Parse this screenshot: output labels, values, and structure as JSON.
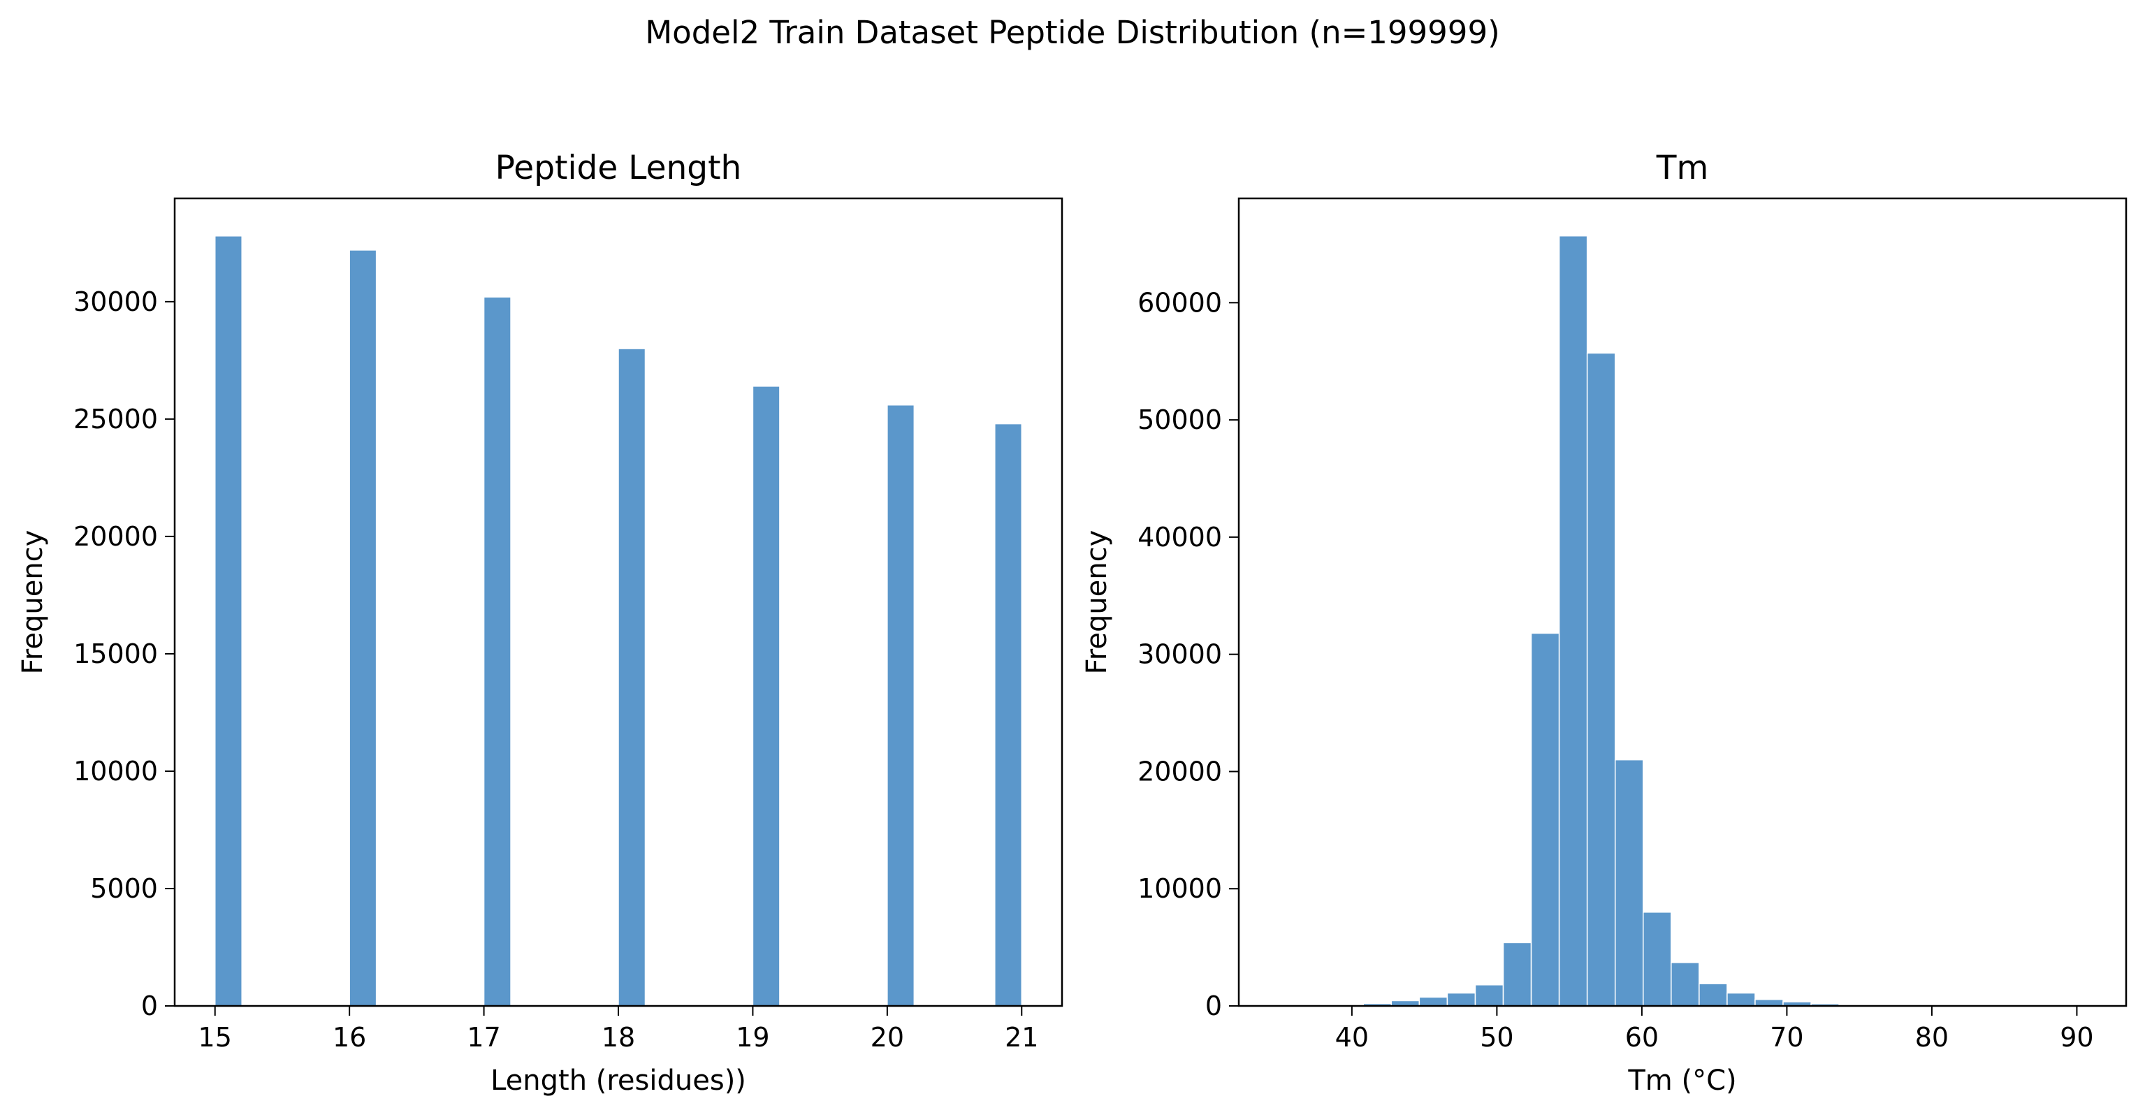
{
  "figure": {
    "suptitle": "Model2 Train Dataset Peptide Distribution (n=199999)",
    "bar_color": "#5b97cb",
    "bar_edge_color": "#ffffff"
  },
  "chart_data": [
    {
      "type": "bar",
      "title": "Peptide Length",
      "xlabel": "Length (residues))",
      "ylabel": "Frequency",
      "xlim": [
        14.7,
        21.3
      ],
      "ylim": [
        0,
        34400
      ],
      "xticks": [
        15,
        16,
        17,
        18,
        19,
        20,
        21
      ],
      "yticks": [
        0,
        5000,
        10000,
        15000,
        20000,
        25000,
        30000
      ],
      "bin_width": 0.2,
      "bars": [
        {
          "x0": 15.0,
          "x1": 15.2,
          "value": 32800
        },
        {
          "x0": 16.0,
          "x1": 16.2,
          "value": 32200
        },
        {
          "x0": 17.0,
          "x1": 17.2,
          "value": 30200
        },
        {
          "x0": 18.0,
          "x1": 18.2,
          "value": 28000
        },
        {
          "x0": 19.0,
          "x1": 19.2,
          "value": 26400
        },
        {
          "x0": 20.0,
          "x1": 20.2,
          "value": 25600
        },
        {
          "x0": 20.8,
          "x1": 21.0,
          "value": 24800
        }
      ],
      "grid": false
    },
    {
      "type": "bar",
      "title": "Tm",
      "xlabel": "Tm (°C)",
      "ylabel": "Frequency",
      "xlim": [
        32.2,
        93.4
      ],
      "ylim": [
        0,
        68900
      ],
      "xticks": [
        40,
        50,
        60,
        70,
        80,
        90
      ],
      "yticks": [
        0,
        10000,
        20000,
        30000,
        40000,
        50000,
        60000
      ],
      "bin_width": 1.93,
      "bars": [
        {
          "x0": 35.0,
          "x1": 36.93,
          "value": 0
        },
        {
          "x0": 36.93,
          "x1": 38.86,
          "value": 50
        },
        {
          "x0": 38.86,
          "x1": 40.79,
          "value": 80
        },
        {
          "x0": 40.79,
          "x1": 42.72,
          "value": 200
        },
        {
          "x0": 42.72,
          "x1": 44.65,
          "value": 450
        },
        {
          "x0": 44.65,
          "x1": 46.58,
          "value": 750
        },
        {
          "x0": 46.58,
          "x1": 48.51,
          "value": 1100
        },
        {
          "x0": 48.51,
          "x1": 50.44,
          "value": 1800
        },
        {
          "x0": 50.44,
          "x1": 52.37,
          "value": 5400
        },
        {
          "x0": 52.37,
          "x1": 54.3,
          "value": 31800
        },
        {
          "x0": 54.3,
          "x1": 56.23,
          "value": 65700
        },
        {
          "x0": 56.23,
          "x1": 58.16,
          "value": 55700
        },
        {
          "x0": 58.16,
          "x1": 60.09,
          "value": 21000
        },
        {
          "x0": 60.09,
          "x1": 62.02,
          "value": 8000
        },
        {
          "x0": 62.02,
          "x1": 63.95,
          "value": 3700
        },
        {
          "x0": 63.95,
          "x1": 65.88,
          "value": 1900
        },
        {
          "x0": 65.88,
          "x1": 67.81,
          "value": 1100
        },
        {
          "x0": 67.81,
          "x1": 69.74,
          "value": 550
        },
        {
          "x0": 69.74,
          "x1": 71.67,
          "value": 350
        },
        {
          "x0": 71.67,
          "x1": 73.6,
          "value": 180
        },
        {
          "x0": 73.6,
          "x1": 75.53,
          "value": 90
        },
        {
          "x0": 75.53,
          "x1": 77.46,
          "value": 50
        },
        {
          "x0": 77.46,
          "x1": 79.39,
          "value": 30
        },
        {
          "x0": 79.39,
          "x1": 81.32,
          "value": 20
        },
        {
          "x0": 81.32,
          "x1": 83.25,
          "value": 10
        },
        {
          "x0": 83.25,
          "x1": 85.18,
          "value": 5
        },
        {
          "x0": 85.18,
          "x1": 87.11,
          "value": 3
        },
        {
          "x0": 87.11,
          "x1": 89.04,
          "value": 2
        },
        {
          "x0": 89.04,
          "x1": 90.97,
          "value": 1
        },
        {
          "x0": 90.97,
          "x1": 92.9,
          "value": 1
        }
      ],
      "grid": false
    }
  ]
}
